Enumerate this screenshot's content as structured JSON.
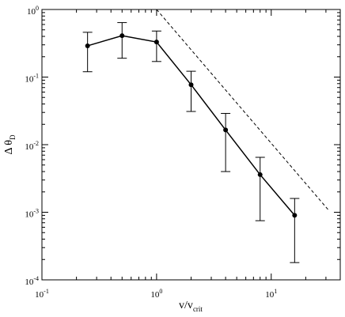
{
  "chart_data": {
    "type": "line",
    "title": "",
    "xlabel": {
      "base": "v/v",
      "subscript": "crit"
    },
    "ylabel": {
      "symbol": "Δ θ",
      "subscript": "D"
    },
    "xscale": "log",
    "yscale": "log",
    "xlim": [
      0.1,
      40
    ],
    "ylim": [
      0.0001,
      1
    ],
    "grid": false,
    "legend": "none",
    "x_ticks": [
      {
        "value": 0.1,
        "base": "10",
        "exp": "-1"
      },
      {
        "value": 1,
        "base": "10",
        "exp": "0"
      },
      {
        "value": 10,
        "base": "10",
        "exp": "1"
      }
    ],
    "y_ticks": [
      {
        "value": 0.0001,
        "base": "10",
        "exp": "-4"
      },
      {
        "value": 0.001,
        "base": "10",
        "exp": "-3"
      },
      {
        "value": 0.01,
        "base": "10",
        "exp": "-2"
      },
      {
        "value": 0.1,
        "base": "10",
        "exp": "-1"
      },
      {
        "value": 1,
        "base": "10",
        "exp": "0"
      }
    ],
    "series": [
      {
        "style": "solid",
        "color": "#000000",
        "marker": "circle",
        "x": [
          0.25,
          0.5,
          1,
          2,
          4,
          8,
          16
        ],
        "y": [
          0.29,
          0.41,
          0.33,
          0.077,
          0.0165,
          0.0036,
          0.0009
        ],
        "y_err_low": [
          0.12,
          0.19,
          0.17,
          0.031,
          0.004,
          0.00075,
          0.00018
        ],
        "y_err_high": [
          0.46,
          0.64,
          0.48,
          0.122,
          0.029,
          0.0065,
          0.0016
        ]
      },
      {
        "style": "dashed",
        "color": "#000000",
        "marker": "none",
        "x": [
          1,
          32
        ],
        "y": [
          1,
          0.00105
        ]
      }
    ]
  }
}
